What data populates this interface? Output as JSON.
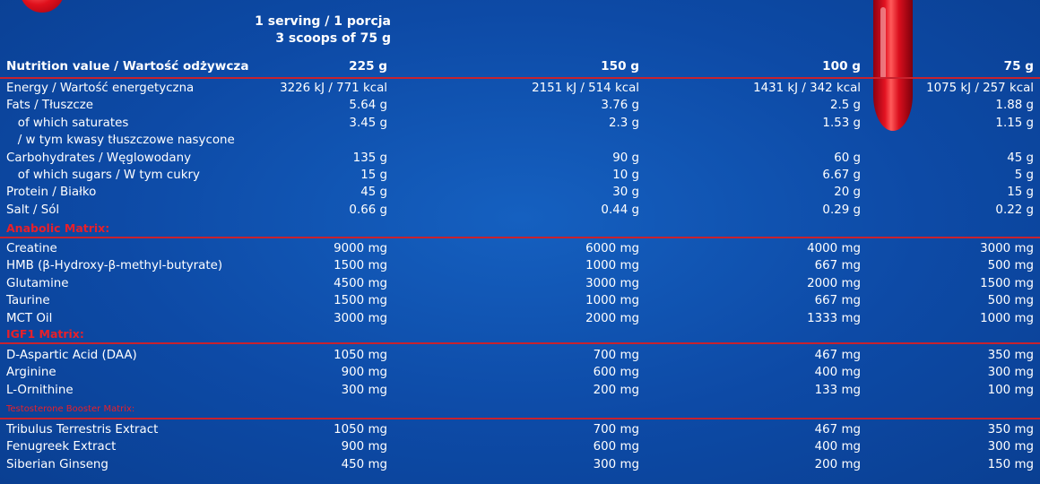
{
  "serving": {
    "line1": "1 serving / 1 porcja",
    "line2": "3 scoops of 75 g"
  },
  "header": {
    "label": "Nutrition value / Wartość odżywcza",
    "c1": "225 g",
    "c2": "150 g",
    "c3": "100 g",
    "c4": "75 g"
  },
  "nutrition": [
    {
      "label": "Energy / Wartość energetyczna",
      "c1": "3226 kJ / 771 kcal",
      "c2": "2151 kJ / 514 kcal",
      "c3": "1431 kJ / 342 kcal",
      "c4": "1075 kJ / 257 kcal"
    },
    {
      "label": "Fats / Tłuszcze",
      "c1": "5.64 g",
      "c2": "3.76 g",
      "c3": "2.5 g",
      "c4": "1.88 g"
    },
    {
      "label": "   of which saturates",
      "c1": "3.45 g",
      "c2": "2.3 g",
      "c3": "1.53 g",
      "c4": "1.15 g"
    },
    {
      "label": "   / w tym kwasy tłuszczowe nasycone",
      "c1": "",
      "c2": "",
      "c3": "",
      "c4": ""
    },
    {
      "label": "Carbohydrates / Węglowodany",
      "c1": "135 g",
      "c2": "90 g",
      "c3": "60 g",
      "c4": "45 g"
    },
    {
      "label": "   of which sugars / W tym cukry",
      "c1": "15 g",
      "c2": "10 g",
      "c3": "6.67 g",
      "c4": "5 g"
    },
    {
      "label": "Protein / Białko",
      "c1": "45 g",
      "c2": "30 g",
      "c3": "20 g",
      "c4": "15 g"
    },
    {
      "label": "Salt / Sól",
      "c1": "0.66 g",
      "c2": "0.44 g",
      "c3": "0.29 g",
      "c4": "0.22 g"
    }
  ],
  "anabolic": {
    "title": "Anabolic Matrix:",
    "rows": [
      {
        "label": "Creatine",
        "c1": "9000 mg",
        "c2": "6000 mg",
        "c3": "4000 mg",
        "c4": "3000 mg"
      },
      {
        "label": "HMB (β-Hydroxy-β-methyl-butyrate)",
        "c1": "1500 mg",
        "c2": "1000 mg",
        "c3": "667 mg",
        "c4": "500 mg"
      },
      {
        "label": "Glutamine",
        "c1": "4500 mg",
        "c2": "3000 mg",
        "c3": "2000 mg",
        "c4": "1500 mg"
      },
      {
        "label": "Taurine",
        "c1": "1500 mg",
        "c2": "1000 mg",
        "c3": "667 mg",
        "c4": "500 mg"
      },
      {
        "label": "MCT Oil",
        "c1": "3000 mg",
        "c2": "2000 mg",
        "c3": "1333 mg",
        "c4": "1000 mg"
      }
    ]
  },
  "igf": {
    "title": "IGF1 Matrix:",
    "rows": [
      {
        "label": "D-Aspartic Acid (DAA)",
        "c1": "1050 mg",
        "c2": "700 mg",
        "c3": "467 mg",
        "c4": "350 mg"
      },
      {
        "label": "Arginine",
        "c1": "900 mg",
        "c2": "600 mg",
        "c3": "400 mg",
        "c4": "300 mg"
      },
      {
        "label": "L-Ornithine",
        "c1": "300 mg",
        "c2": "200 mg",
        "c3": "133 mg",
        "c4": "100 mg"
      }
    ]
  },
  "testosterone": {
    "title": "Testosterone Booster Matrix:",
    "rows": [
      {
        "label": "Tribulus Terrestris Extract",
        "c1": "1050 mg",
        "c2": "700 mg",
        "c3": "467 mg",
        "c4": "350 mg"
      },
      {
        "label": "Fenugreek Extract",
        "c1": "900 mg",
        "c2": "600 mg",
        "c3": "400 mg",
        "c4": "300 mg"
      },
      {
        "label": "Siberian Ginseng",
        "c1": "450 mg",
        "c2": "300 mg",
        "c3": "200 mg",
        "c4": "150 mg"
      }
    ]
  },
  "colors": {
    "background": "#0d4aa6",
    "accent_red": "#e8202a",
    "divider": "#c8222e",
    "text": "#ffffff"
  }
}
